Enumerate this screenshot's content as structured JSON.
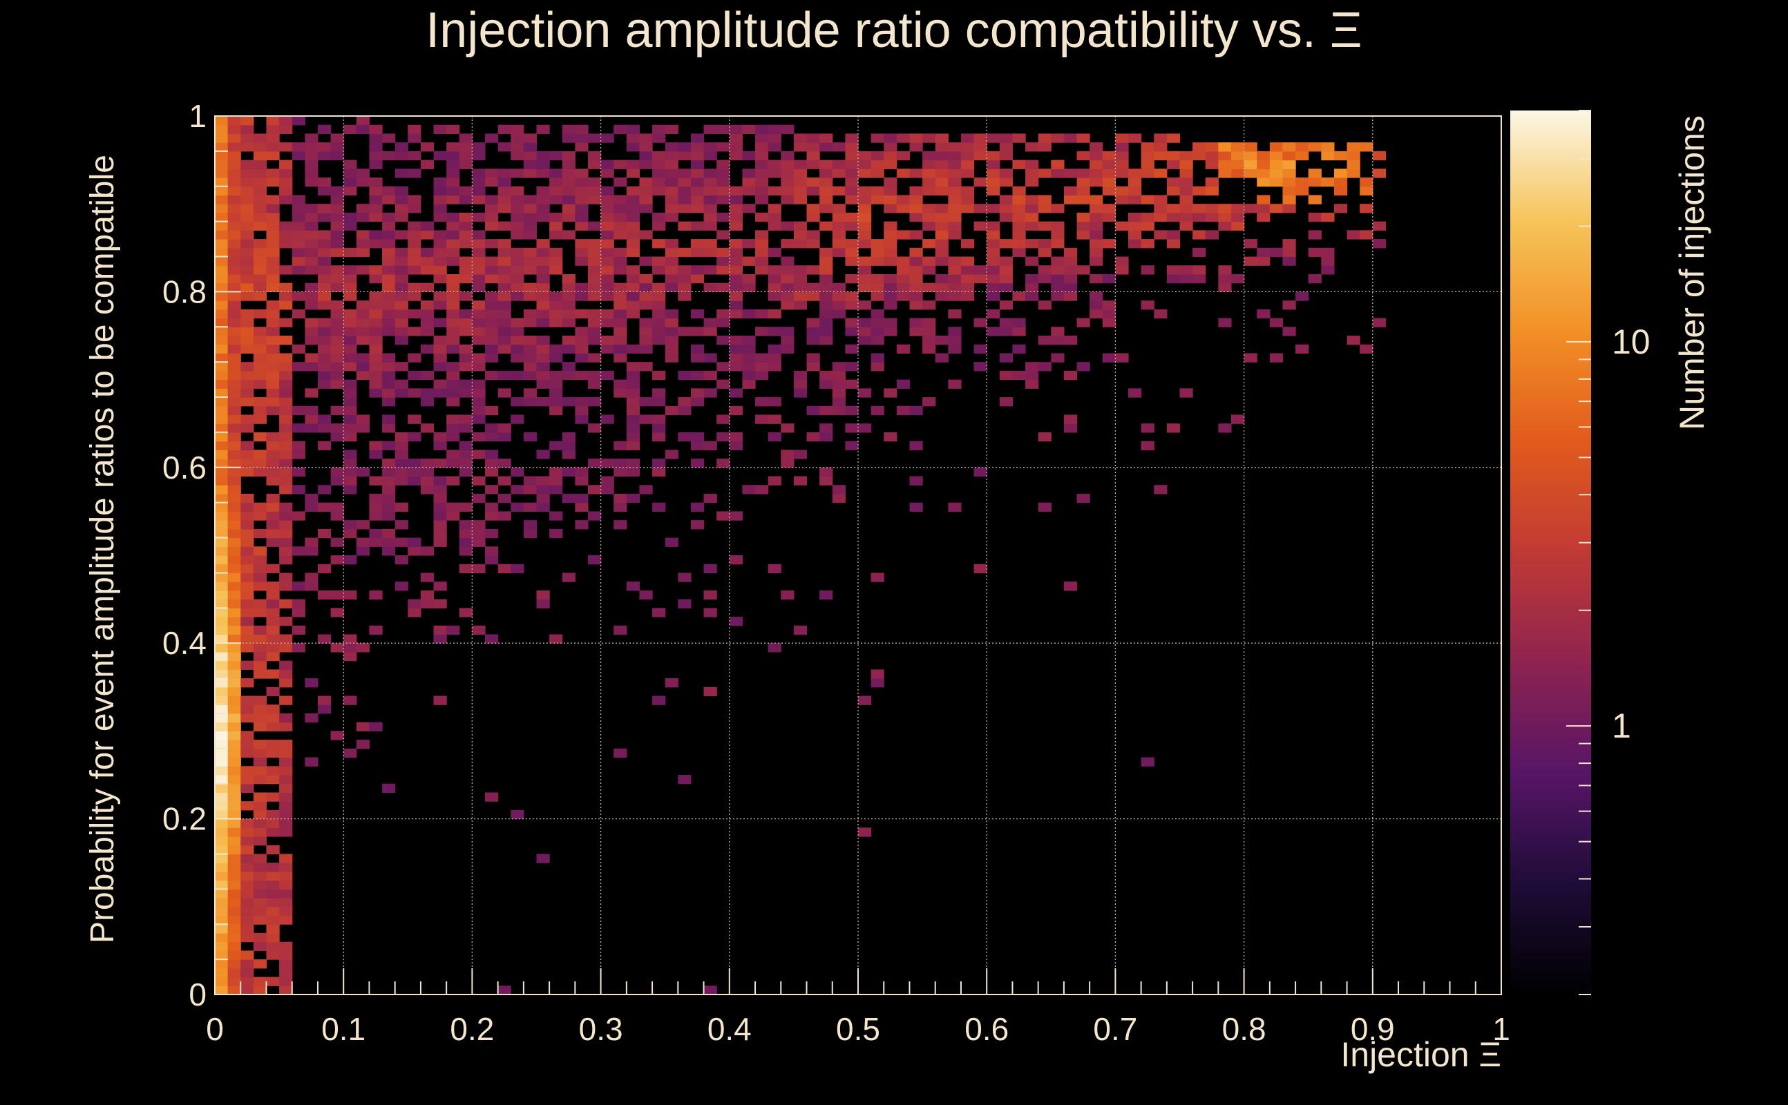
{
  "chart_data": {
    "type": "heatmap",
    "title": "Injection amplitude ratio compatibility vs.  Ξ",
    "xlabel": "Injection Ξ",
    "ylabel": "Probability for event amplitude ratios to be compatible",
    "xlim": [
      0,
      1
    ],
    "ylim": [
      0,
      1
    ],
    "x_ticks": [
      "0",
      "0.1",
      "0.2",
      "0.3",
      "0.4",
      "0.5",
      "0.6",
      "0.7",
      "0.8",
      "0.9",
      "1"
    ],
    "y_ticks": [
      "0",
      "0.2",
      "0.4",
      "0.6",
      "0.8",
      "1"
    ],
    "grid": true,
    "bins": {
      "x": 100,
      "y": 100
    },
    "colorbar": {
      "label": "Number of injections",
      "scale": "log",
      "range": [
        0.2,
        40
      ],
      "tick_labels": [
        "1",
        "10"
      ],
      "tick_values": [
        1,
        10
      ],
      "colors": [
        "#000000",
        "#1e0c38",
        "#571566",
        "#8e2350",
        "#c03a35",
        "#e15a1d",
        "#f29026",
        "#f6c45a",
        "#fcf6e6"
      ]
    },
    "density_model": {
      "note": "approximate counts per bin: dense column at x≈0–0.02 (≈8–35), upper boundary from (0,1) to (0.9,0.97); sparse wedge below the diagonal y≈0.4+0.6x",
      "stray_bins": [
        [
          0.725,
          0.265
        ],
        [
          0.385,
          0.005
        ],
        [
          0.225,
          0.005
        ],
        [
          0.255,
          0.155
        ],
        [
          0.235,
          0.205
        ],
        [
          0.475,
          0.455
        ],
        [
          0.405,
          0.425
        ],
        [
          0.365,
          0.245
        ],
        [
          0.345,
          0.335
        ]
      ]
    }
  }
}
